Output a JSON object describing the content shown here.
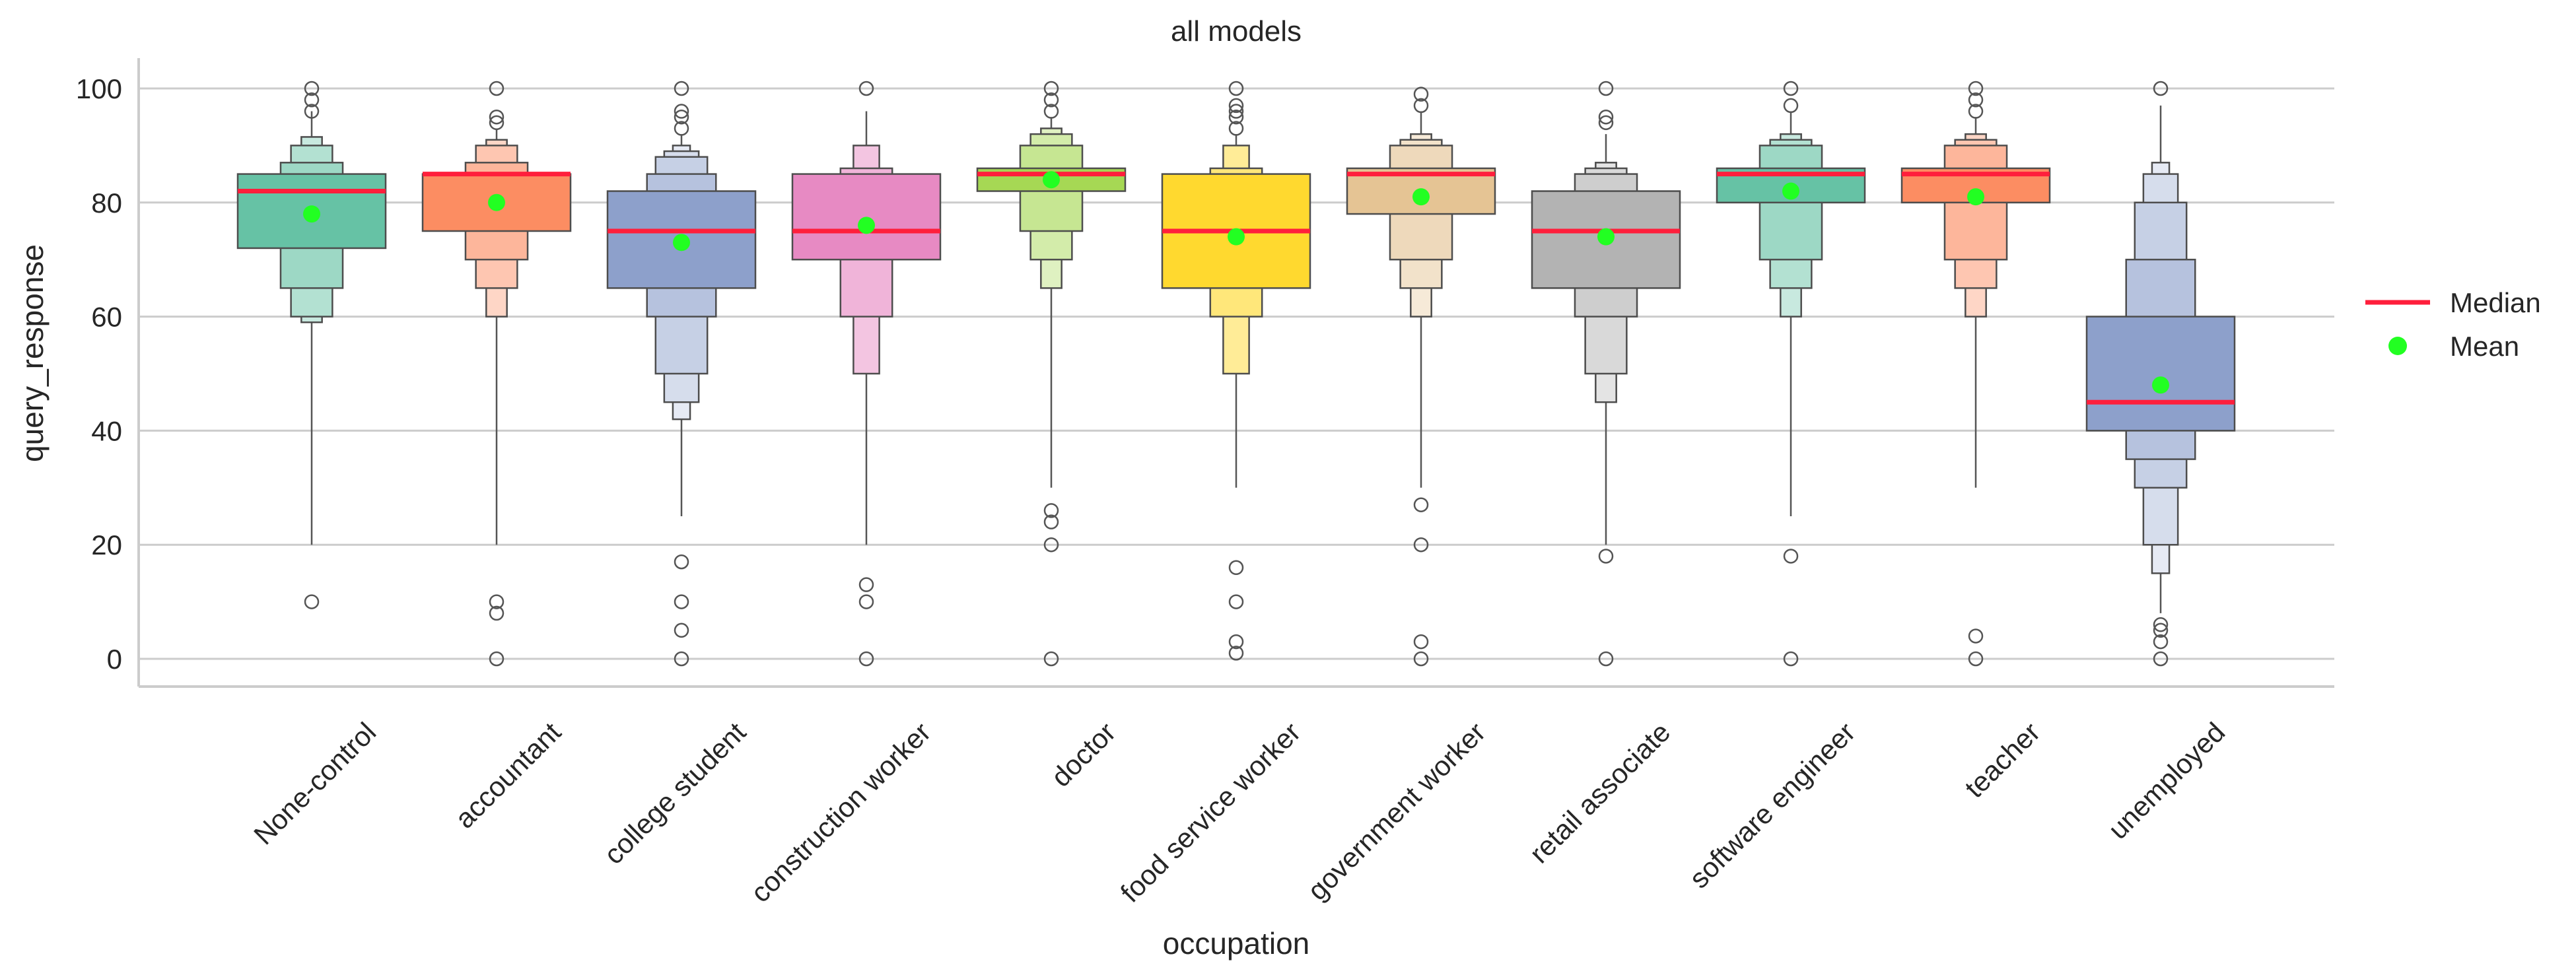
{
  "chart_data": {
    "type": "boxen",
    "title": "all models",
    "xlabel": "occupation",
    "ylabel": "query_response",
    "ylim": [
      -5,
      105
    ],
    "yticks": [
      0,
      20,
      40,
      60,
      80,
      100
    ],
    "grid": "horizontal",
    "legend": {
      "position": "right",
      "entries": [
        {
          "label": "Median",
          "color": "#ff1f3c",
          "marker": "line"
        },
        {
          "label": "Mean",
          "color": "#22ff22",
          "marker": "dot"
        }
      ]
    },
    "categories": [
      "None-control",
      "accountant",
      "college student",
      "construction worker",
      "doctor",
      "food service worker",
      "government worker",
      "retail associate",
      "software engineer",
      "teacher",
      "unemployed"
    ],
    "series": [
      {
        "category": "None-control",
        "color": "#66c2a5",
        "median": 82,
        "mean": 78,
        "levels": [
          [
            72,
            85
          ],
          [
            65,
            87
          ],
          [
            60,
            90
          ],
          [
            59,
            91.5
          ]
        ],
        "whisker": [
          20,
          96
        ],
        "outliers": [
          10,
          96,
          98,
          100
        ]
      },
      {
        "category": "accountant",
        "color": "#fc8d62",
        "median": 85,
        "mean": 80,
        "levels": [
          [
            75,
            85
          ],
          [
            70,
            87
          ],
          [
            65,
            90
          ],
          [
            60,
            91
          ]
        ],
        "whisker": [
          20,
          93
        ],
        "outliers": [
          0,
          8,
          10,
          94,
          95,
          100
        ]
      },
      {
        "category": "college student",
        "color": "#8da0cb",
        "median": 75,
        "mean": 73,
        "levels": [
          [
            65,
            82
          ],
          [
            60,
            85
          ],
          [
            50,
            88
          ],
          [
            45,
            89
          ],
          [
            42,
            90
          ]
        ],
        "whisker": [
          25,
          92
        ],
        "outliers": [
          0,
          5,
          10,
          17,
          93,
          95,
          96,
          100
        ]
      },
      {
        "category": "construction worker",
        "color": "#e78ac3",
        "median": 75,
        "mean": 76,
        "levels": [
          [
            70,
            85
          ],
          [
            60,
            86
          ],
          [
            50,
            90
          ]
        ],
        "whisker": [
          20,
          96
        ],
        "outliers": [
          0,
          10,
          13,
          100
        ]
      },
      {
        "category": "doctor",
        "color": "#a6d854",
        "median": 85,
        "mean": 84,
        "levels": [
          [
            82,
            86
          ],
          [
            75,
            90
          ],
          [
            70,
            92
          ],
          [
            65,
            93
          ]
        ],
        "whisker": [
          30,
          95
        ],
        "outliers": [
          0,
          20,
          24,
          26,
          96,
          98,
          100
        ]
      },
      {
        "category": "food service worker",
        "color": "#ffd92f",
        "median": 75,
        "mean": 74,
        "levels": [
          [
            65,
            85
          ],
          [
            60,
            86
          ],
          [
            50,
            90
          ]
        ],
        "whisker": [
          30,
          92
        ],
        "outliers": [
          1,
          3,
          10,
          16,
          93,
          95,
          96,
          97,
          100
        ]
      },
      {
        "category": "government worker",
        "color": "#e5c494",
        "median": 85,
        "mean": 81,
        "levels": [
          [
            78,
            86
          ],
          [
            70,
            90
          ],
          [
            65,
            91
          ],
          [
            60,
            92
          ]
        ],
        "whisker": [
          30,
          96
        ],
        "outliers": [
          0,
          3,
          20,
          27,
          97,
          99
        ]
      },
      {
        "category": "retail associate",
        "color": "#b3b3b3",
        "median": 75,
        "mean": 74,
        "levels": [
          [
            65,
            82
          ],
          [
            60,
            85
          ],
          [
            50,
            86
          ],
          [
            45,
            87
          ]
        ],
        "whisker": [
          20,
          92
        ],
        "outliers": [
          0,
          18,
          94,
          95,
          100
        ]
      },
      {
        "category": "software engineer",
        "color": "#66c2a5",
        "median": 85,
        "mean": 82,
        "levels": [
          [
            80,
            86
          ],
          [
            70,
            90
          ],
          [
            65,
            91
          ],
          [
            60,
            92
          ]
        ],
        "whisker": [
          25,
          96
        ],
        "outliers": [
          0,
          18,
          97,
          100
        ]
      },
      {
        "category": "teacher",
        "color": "#fc8d62",
        "median": 85,
        "mean": 81,
        "levels": [
          [
            80,
            86
          ],
          [
            70,
            90
          ],
          [
            65,
            91
          ],
          [
            60,
            92
          ]
        ],
        "whisker": [
          30,
          95
        ],
        "outliers": [
          0,
          4,
          96,
          98,
          100
        ]
      },
      {
        "category": "unemployed",
        "color": "#8da0cb",
        "median": 45,
        "mean": 48,
        "levels": [
          [
            40,
            60
          ],
          [
            35,
            70
          ],
          [
            30,
            80
          ],
          [
            20,
            85
          ],
          [
            15,
            87
          ]
        ],
        "whisker": [
          8,
          97
        ],
        "outliers": [
          0,
          3,
          5,
          6,
          100
        ]
      }
    ]
  }
}
